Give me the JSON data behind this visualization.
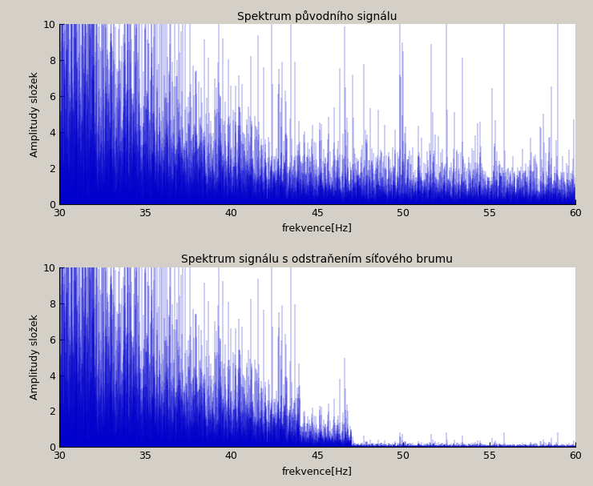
{
  "title1": "Spektrum původního signálu",
  "title2": "Spektrum signálu s odstraňením síťového brumu",
  "xlabel": "frekvence[Hz]",
  "ylabel": "Amplitudy složek",
  "xlim": [
    30,
    60
  ],
  "ylim": [
    0,
    10
  ],
  "xticks": [
    30,
    35,
    40,
    45,
    50,
    55,
    60
  ],
  "yticks": [
    0,
    2,
    4,
    6,
    8,
    10
  ],
  "line_color": "#0000CC",
  "bg_color": "#D4D0C8",
  "plot_bg": "#FFFFFF",
  "spike_freq": 50.0,
  "spike_amplitude": 8.5,
  "seed": 42,
  "n_points": 8000,
  "freq_start": 30,
  "freq_end": 60,
  "title_fontsize": 10,
  "label_fontsize": 9
}
